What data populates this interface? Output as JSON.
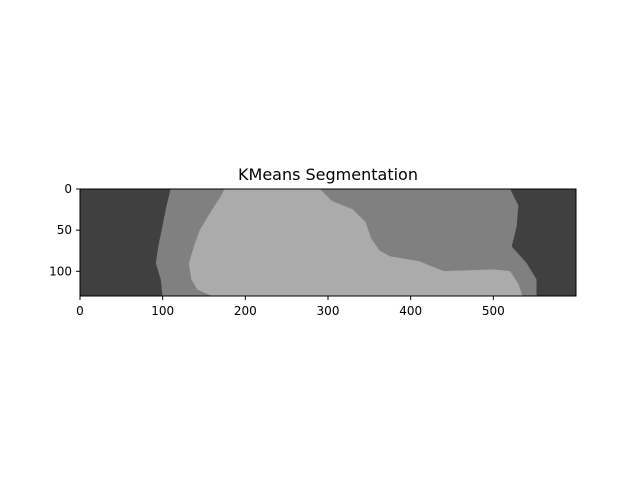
{
  "chart_data": {
    "type": "heatmap",
    "title": "KMeans Segmentation",
    "xlabel": "",
    "ylabel": "",
    "colormap": "gray",
    "xlim": [
      0,
      600
    ],
    "ylim": [
      130,
      0
    ],
    "x_ticks": [
      0,
      100,
      200,
      300,
      400,
      500
    ],
    "y_ticks": [
      0,
      50,
      100
    ],
    "grid": false,
    "legend": "none",
    "clusters": [
      {
        "level": "dark",
        "color": "#404040"
      },
      {
        "level": "mid",
        "color": "#808080"
      },
      {
        "level": "light",
        "color": "#ababab"
      }
    ],
    "regions": {
      "mid": [
        [
          110,
          0
        ],
        [
          520,
          0
        ],
        [
          530,
          20
        ],
        [
          528,
          45
        ],
        [
          522,
          70
        ],
        [
          540,
          90
        ],
        [
          552,
          110
        ],
        [
          552,
          130
        ],
        [
          100,
          130
        ],
        [
          98,
          110
        ],
        [
          92,
          90
        ],
        [
          95,
          70
        ],
        [
          100,
          45
        ],
        [
          105,
          20
        ]
      ],
      "light": [
        [
          175,
          0
        ],
        [
          290,
          0
        ],
        [
          305,
          15
        ],
        [
          330,
          25
        ],
        [
          345,
          40
        ],
        [
          352,
          60
        ],
        [
          362,
          75
        ],
        [
          375,
          82
        ],
        [
          410,
          88
        ],
        [
          440,
          100
        ],
        [
          500,
          98
        ],
        [
          520,
          100
        ],
        [
          530,
          115
        ],
        [
          535,
          130
        ],
        [
          160,
          130
        ],
        [
          142,
          122
        ],
        [
          135,
          110
        ],
        [
          132,
          90
        ],
        [
          138,
          70
        ],
        [
          145,
          50
        ],
        [
          160,
          25
        ],
        [
          170,
          10
        ]
      ]
    }
  }
}
